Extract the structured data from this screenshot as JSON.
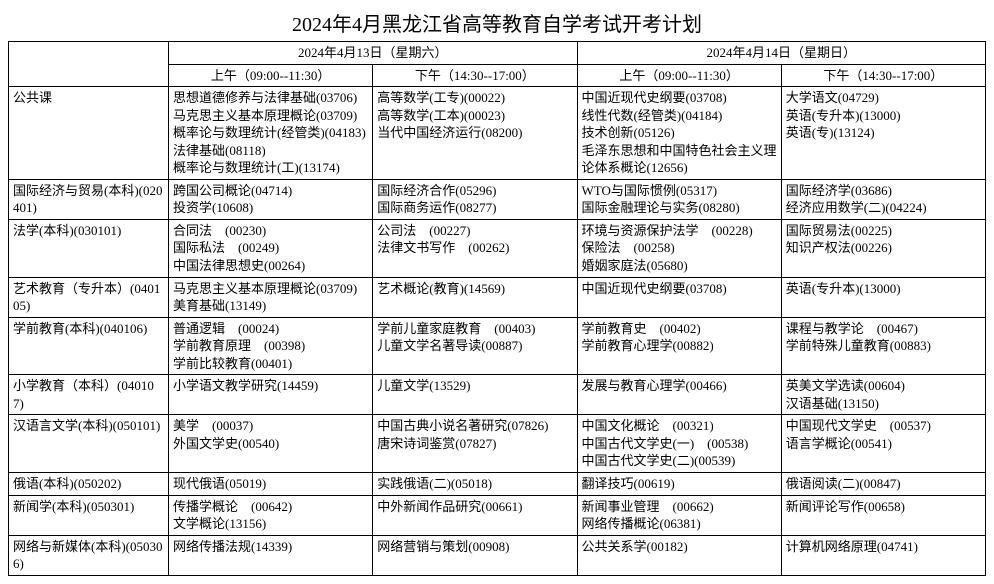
{
  "title": "2024年4月黑龙江省高等教育自学考试开考计划",
  "header": {
    "day1": "2024年4月13日（星期六）",
    "day2": "2024年4月14日（星期日）",
    "am": "上午（09:00--11:30）",
    "pm": "下午（14:30--17:00）"
  },
  "rows": [
    {
      "category": "公共课",
      "d1am": "思想道德修养与法律基础(03706)\n马克思主义基本原理概论(03709)\n概率论与数理统计(经管类)(04183)\n法律基础(08118)\n概率论与数理统计(工)(13174)",
      "d1pm": "高等数学(工专)(00022)\n高等数学(工本)(00023)\n当代中国经济运行(08200)",
      "d2am": "中国近现代史纲要(03708)\n线性代数(经管类)(04184)\n技术创新(05126)\n毛泽东思想和中国特色社会主义理论体系概论(12656)",
      "d2pm": "大学语文(04729)\n英语(专升本)(13000)\n英语(专)(13124)"
    },
    {
      "category": "国际经济与贸易(本科)(020401)",
      "d1am": "跨国公司概论(04714)\n投资学(10608)",
      "d1pm": "国际经济合作(05296)\n国际商务运作(08277)",
      "d2am": "WTO与国际惯例(05317)\n国际金融理论与实务(08280)",
      "d2pm": "国际经济学(03686)\n经济应用数学(二)(04224)"
    },
    {
      "category": "法学(本科)(030101)",
      "d1am": "合同法　(00230)\n国际私法　(00249)\n中国法律思想史(00264)",
      "d1pm": "公司法　(00227)\n法律文书写作　(00262)",
      "d2am": "环境与资源保护法学　(00228)\n保险法　(00258)\n婚姻家庭法(05680)",
      "d2pm": "国际贸易法(00225)\n知识产权法(00226)"
    },
    {
      "category": "艺术教育（专升本）(040105)",
      "d1am": "马克思主义基本原理概论(03709)\n美育基础(13149)",
      "d1pm": "艺术概论(教育)(14569)",
      "d2am": "中国近现代史纲要(03708)",
      "d2pm": "英语(专升本)(13000)"
    },
    {
      "category": "学前教育(本科)(040106)",
      "d1am": "普通逻辑　(00024)\n学前教育原理　(00398)\n学前比较教育(00401)",
      "d1pm": "学前儿童家庭教育　(00403)\n儿童文学名著导读(00887)",
      "d2am": "学前教育史　(00402)\n学前教育心理学(00882)",
      "d2pm": "课程与教学论　(00467)\n学前特殊儿童教育(00883)"
    },
    {
      "category": "小学教育（本科）(040107)",
      "d1am": "小学语文教学研究(14459)",
      "d1pm": "儿童文学(13529)",
      "d2am": "发展与教育心理学(00466)",
      "d2pm": "英美文学选读(00604)\n汉语基础(13150)"
    },
    {
      "category": "汉语言文学(本科)(050101)",
      "d1am": "美学　(00037)\n外国文学史(00540)",
      "d1pm": "中国古典小说名著研究(07826)\n唐宋诗词鉴赏(07827)",
      "d2am": "中国文化概论　(00321)\n中国古代文学史(一)　(00538)\n中国古代文学史(二)(00539)",
      "d2pm": "中国现代文学史　(00537)\n语言学概论(00541)"
    },
    {
      "category": "俄语(本科)(050202)",
      "d1am": "现代俄语(05019)",
      "d1pm": "实践俄语(二)(05018)",
      "d2am": "翻译技巧(00619)",
      "d2pm": "俄语阅读(二)(00847)"
    },
    {
      "category": "新闻学(本科)(050301)",
      "d1am": "传播学概论　(00642)\n文学概论(13156)",
      "d1pm": "中外新闻作品研究(00661)",
      "d2am": "新闻事业管理　(00662)\n网络传播概论(06381)",
      "d2pm": "新闻评论写作(00658)"
    },
    {
      "category": "网络与新媒体(本科)(050306)",
      "d1am": "网络传播法规(14339)",
      "d1pm": "网络营销与策划(00908)",
      "d2am": "公共关系学(00182)",
      "d2pm": "计算机网络原理(04741)"
    }
  ]
}
